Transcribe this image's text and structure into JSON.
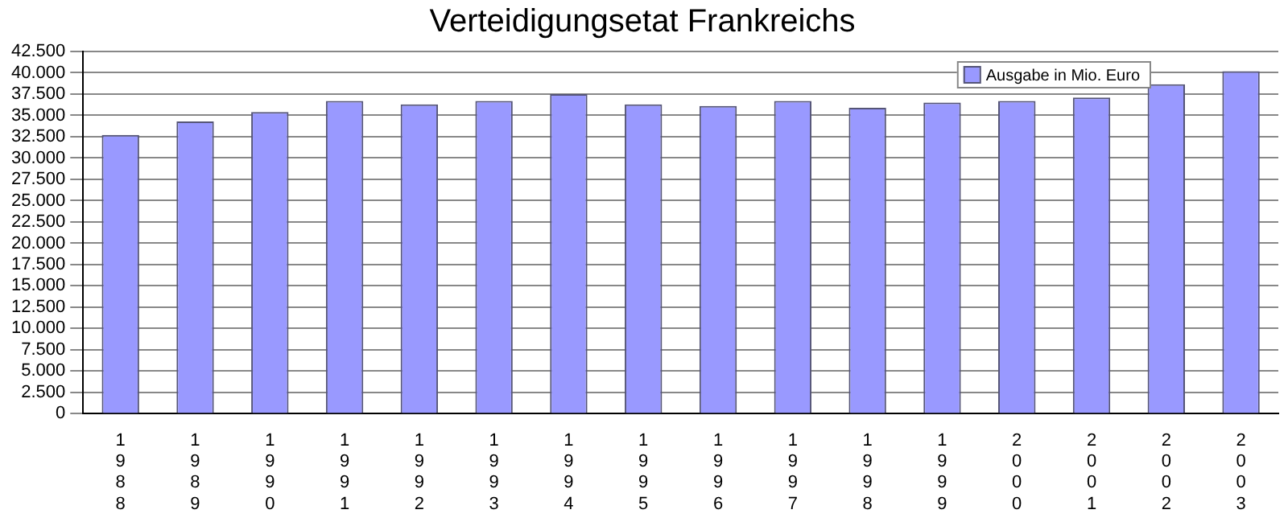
{
  "chart_data": {
    "type": "bar",
    "title": "Verteidigungsetat Frankreichs",
    "categories": [
      "1988",
      "1989",
      "1990",
      "1991",
      "1992",
      "1993",
      "1994",
      "1995",
      "1996",
      "1997",
      "1998",
      "1999",
      "2000",
      "2001",
      "2002",
      "2003"
    ],
    "series": [
      {
        "name": "Ausgabe in Mio. Euro",
        "color": "#9999ff",
        "values": [
          32700,
          34300,
          35400,
          36700,
          36300,
          36700,
          37500,
          36300,
          36100,
          36700,
          35900,
          36500,
          36700,
          37100,
          38650,
          40200
        ]
      }
    ],
    "ylim": [
      0,
      42500
    ],
    "yticks": [
      0,
      {
        "value": 2500,
        "label": "2.500"
      },
      {
        "value": 5000,
        "label": "5.000"
      },
      {
        "value": 7500,
        "label": "7.500"
      },
      {
        "value": 10000,
        "label": "10.000"
      },
      {
        "value": 12500,
        "label": "12.500"
      },
      {
        "value": 15000,
        "label": "15.000"
      },
      {
        "value": 17500,
        "label": "17.500"
      },
      {
        "value": 20000,
        "label": "20.000"
      },
      {
        "value": 22500,
        "label": "22.500"
      },
      {
        "value": 25000,
        "label": "25.000"
      },
      {
        "value": 27500,
        "label": "27.500"
      },
      {
        "value": 30000,
        "label": "30.000"
      },
      {
        "value": 32500,
        "label": "32.500"
      },
      {
        "value": 35000,
        "label": "35.000"
      },
      {
        "value": 37500,
        "label": "37.500"
      },
      {
        "value": 40000,
        "label": "40.000"
      },
      {
        "value": 42500,
        "label": "42.500"
      }
    ],
    "grid": "y",
    "legend": "top right"
  }
}
